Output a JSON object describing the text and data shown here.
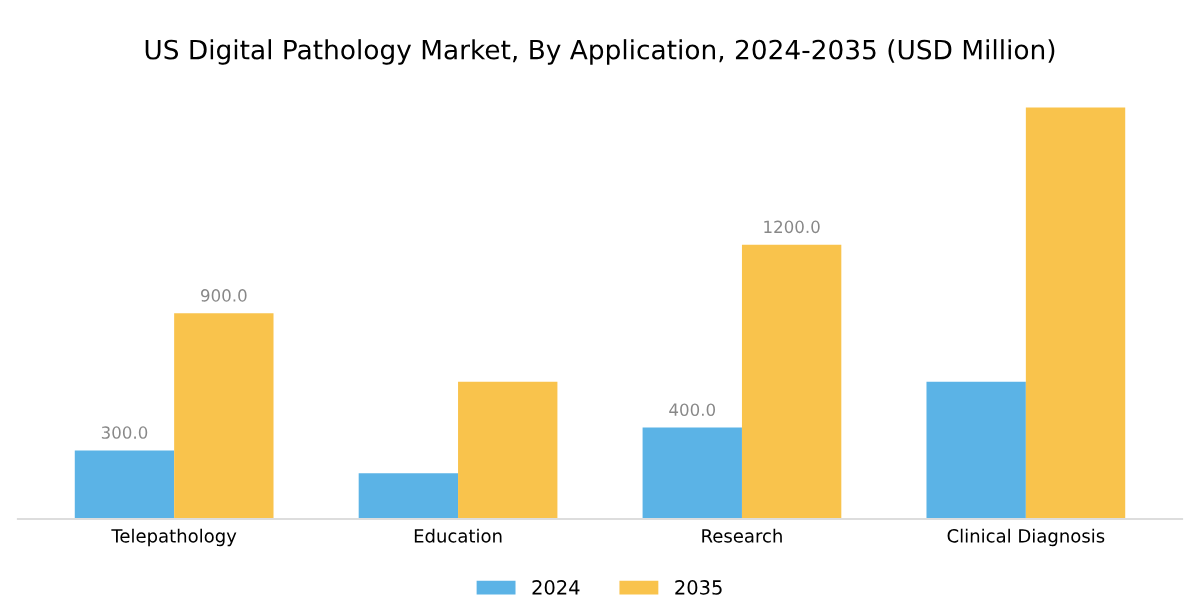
{
  "chart_data": {
    "type": "bar",
    "title": "US Digital Pathology Market, By Application, 2024-2035 (USD Million)",
    "categories": [
      "Telepathology",
      "Education",
      "Research",
      "Clinical Diagnosis"
    ],
    "series": [
      {
        "name": "2024",
        "color": "#5bb3e6",
        "values": [
          300,
          200,
          400,
          600
        ],
        "value_labels": [
          "300.0",
          null,
          "400.0",
          null
        ]
      },
      {
        "name": "2035",
        "color": "#f9c34c",
        "values": [
          900,
          600,
          1200,
          1800
        ],
        "value_labels": [
          "900.0",
          null,
          "1200.0",
          null
        ]
      }
    ],
    "legend": "bottom",
    "grid": false,
    "tick_labels": "x"
  }
}
